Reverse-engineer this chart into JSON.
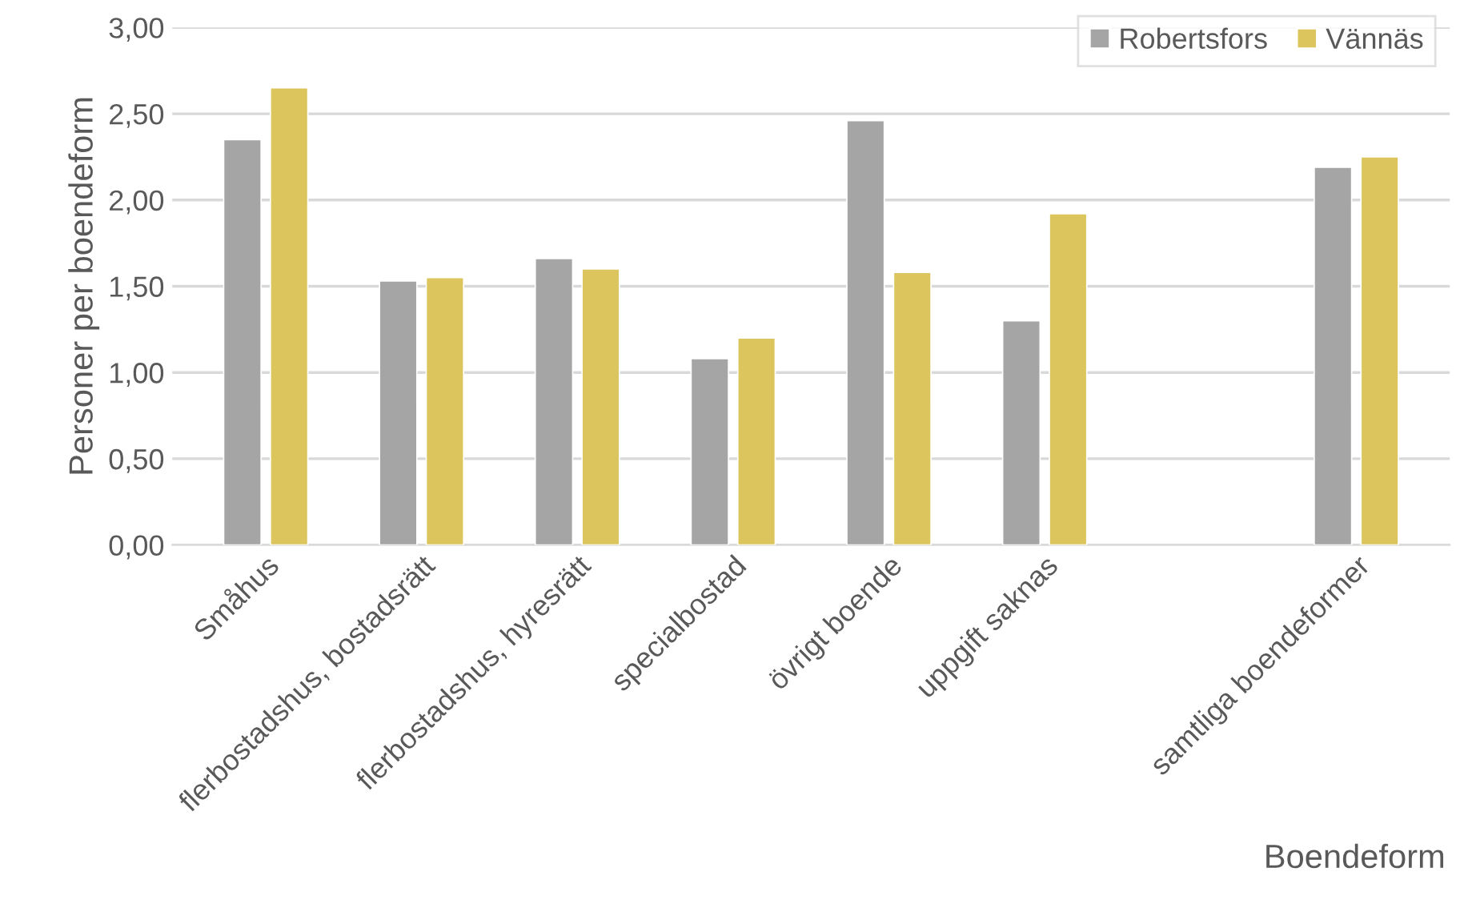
{
  "chart_data": {
    "type": "bar",
    "xlabel": "Boendeform",
    "ylabel": "Personer per boendeform",
    "categories": [
      "Småhus",
      "flerbostadshus, bostadsrätt",
      "flerbostadshus, hyresrätt",
      "specialbostad",
      "övrigt boende",
      "uppgift saknas",
      null,
      "samtliga boendeformer"
    ],
    "series": [
      {
        "name": "Robertsfors",
        "color": "#a5a5a5",
        "values": [
          2.35,
          1.53,
          1.66,
          1.08,
          2.46,
          1.3,
          null,
          2.19
        ]
      },
      {
        "name": "Vännäs",
        "color": "#dcc55c",
        "values": [
          2.65,
          1.55,
          1.6,
          1.2,
          1.58,
          1.92,
          null,
          2.25
        ]
      }
    ],
    "ylim": [
      0,
      3
    ],
    "yticks": [
      {
        "value": 0,
        "label": "0,00"
      },
      {
        "value": 0.5,
        "label": "0,50"
      },
      {
        "value": 1,
        "label": "1,00"
      },
      {
        "value": 1.5,
        "label": "1,50"
      },
      {
        "value": 2,
        "label": "2,00"
      },
      {
        "value": 2.5,
        "label": "2,50"
      },
      {
        "value": 3,
        "label": "3,00"
      }
    ],
    "grid": "y",
    "legend": "top right"
  }
}
